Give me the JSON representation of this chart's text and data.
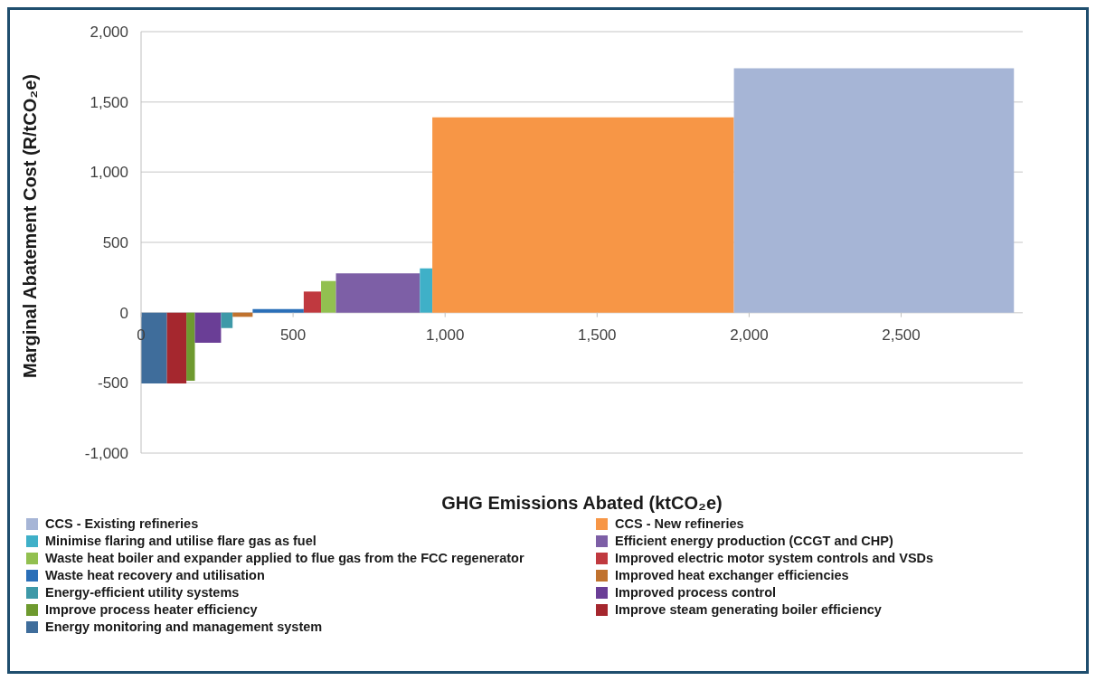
{
  "chart_data": {
    "type": "area",
    "xlabel": "GHG Emissions Abated (ktCO₂e)",
    "ylabel": "Marginal Abatement Cost (R/tCO₂e)",
    "xlim": [
      0,
      2900
    ],
    "xticks": [
      0,
      {
        "value": 500,
        "label": "500"
      },
      {
        "value": 1000,
        "label": "1,000"
      },
      {
        "value": 1500,
        "label": "1,500"
      },
      {
        "value": 2000,
        "label": "2,000"
      },
      {
        "value": 2500,
        "label": "2,500"
      }
    ],
    "ylim": [
      -1000,
      2000
    ],
    "yticks": [
      {
        "value": -1000,
        "label": "-1,000"
      },
      {
        "value": -500,
        "label": "-500"
      },
      0,
      {
        "value": 500,
        "label": "500"
      },
      {
        "value": 1000,
        "label": "1,000"
      },
      {
        "value": 1500,
        "label": "1,500"
      },
      {
        "value": 2000,
        "label": "2,000"
      }
    ],
    "grid": "y",
    "legend": "bottom",
    "series": [
      {
        "name": "Energy monitoring and management system",
        "color": "#3f6d9b",
        "x": [
          0,
          85
        ],
        "values": [
          -505,
          -505
        ]
      },
      {
        "name": "Improve steam generating boiler efficiency",
        "color": "#a5272e",
        "x": [
          85,
          149
        ],
        "values": [
          -505,
          -505
        ]
      },
      {
        "name": "Improve process heater efficiency",
        "color": "#6e9a2f",
        "x": [
          149,
          177
        ],
        "values": [
          -485,
          -485
        ]
      },
      {
        "name": "Improved process control",
        "color": "#6a3e96",
        "x": [
          177,
          263
        ],
        "values": [
          -215,
          -215
        ]
      },
      {
        "name": "Energy-efficient utility systems",
        "color": "#3e99a8",
        "x": [
          263,
          301
        ],
        "values": [
          -110,
          -110
        ]
      },
      {
        "name": "Improved heat exchanger efficiencies",
        "color": "#c0722e",
        "x": [
          301,
          367
        ],
        "values": [
          -30,
          -30
        ]
      },
      {
        "name": "Waste heat recovery and utilisation",
        "color": "#2a6fb8",
        "x": [
          367,
          535
        ],
        "values": [
          25,
          25
        ]
      },
      {
        "name": "Improved electric motor system controls and VSDs",
        "color": "#c0393f",
        "x": [
          535,
          592
        ],
        "values": [
          150,
          150
        ]
      },
      {
        "name": "Waste heat boiler and expander applied to flue gas from the FCC regenerator",
        "color": "#92c050",
        "x": [
          592,
          641
        ],
        "values": [
          225,
          225
        ]
      },
      {
        "name": "Efficient energy production (CCGT and CHP)",
        "color": "#7d5fa6",
        "x": [
          641,
          917
        ],
        "values": [
          280,
          280
        ]
      },
      {
        "name": "Minimise flaring and utilise flare gas as fuel",
        "color": "#3fb0c8",
        "x": [
          917,
          958
        ],
        "values": [
          315,
          315
        ]
      },
      {
        "name": "CCS - New refineries",
        "color": "#f79646",
        "x": [
          958,
          1950
        ],
        "values": [
          1390,
          1390
        ]
      },
      {
        "name": "CCS - Existing refineries",
        "color": "#a6b5d6",
        "x": [
          1950,
          2871
        ],
        "values": [
          1740,
          1740
        ]
      }
    ]
  }
}
